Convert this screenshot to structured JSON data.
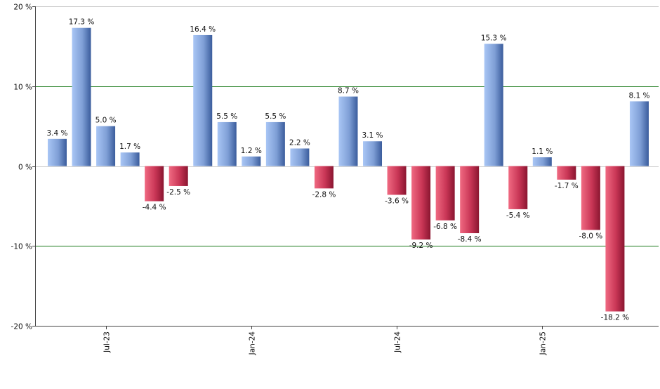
{
  "chart_data": {
    "type": "bar",
    "title": "",
    "xlabel": "",
    "ylabel": "",
    "ylim": [
      -20,
      20
    ],
    "y_ticks": [
      20,
      10,
      0,
      -10,
      -20
    ],
    "y_tick_labels": [
      "20 %",
      "10 %",
      "0 %",
      "-10 %",
      "-20 %"
    ],
    "values": [
      3.4,
      17.3,
      5.0,
      1.7,
      -4.4,
      -2.5,
      16.4,
      5.5,
      1.2,
      5.5,
      2.2,
      -2.8,
      8.7,
      3.1,
      -3.6,
      -9.2,
      -6.8,
      -8.4,
      15.3,
      -5.4,
      1.1,
      -1.7,
      -8.0,
      -18.2,
      8.1
    ],
    "value_labels": [
      "3.4 %",
      "17.3 %",
      "5.0 %",
      "1.7 %",
      "-4.4 %",
      "-2.5 %",
      "16.4 %",
      "5.5 %",
      "1.2 %",
      "5.5 %",
      "2.2 %",
      "-2.8 %",
      "8.7 %",
      "3.1 %",
      "-3.6 %",
      "-9.2 %",
      "-6.8 %",
      "-8.4 %",
      "15.3 %",
      "-5.4 %",
      "1.1 %",
      "-1.7 %",
      "-8.0 %",
      "-18.2 %",
      "8.1 %"
    ],
    "x_tick_labels": [
      {
        "label": "Jul-23",
        "bar_index": 2
      },
      {
        "label": "Jan-24",
        "bar_index": 8
      },
      {
        "label": "Jul-24",
        "bar_index": 14
      },
      {
        "label": "Jan-25",
        "bar_index": 20
      }
    ],
    "grid": true,
    "gridlines_at": [
      10,
      -10
    ],
    "colors": {
      "positive_dark": "#3a5c9c",
      "positive_light": "#a9c6f5",
      "negative_dark": "#8a1530",
      "negative_light": "#f06a82",
      "gridline": "#1a7a1a",
      "axis": "#444444"
    }
  }
}
